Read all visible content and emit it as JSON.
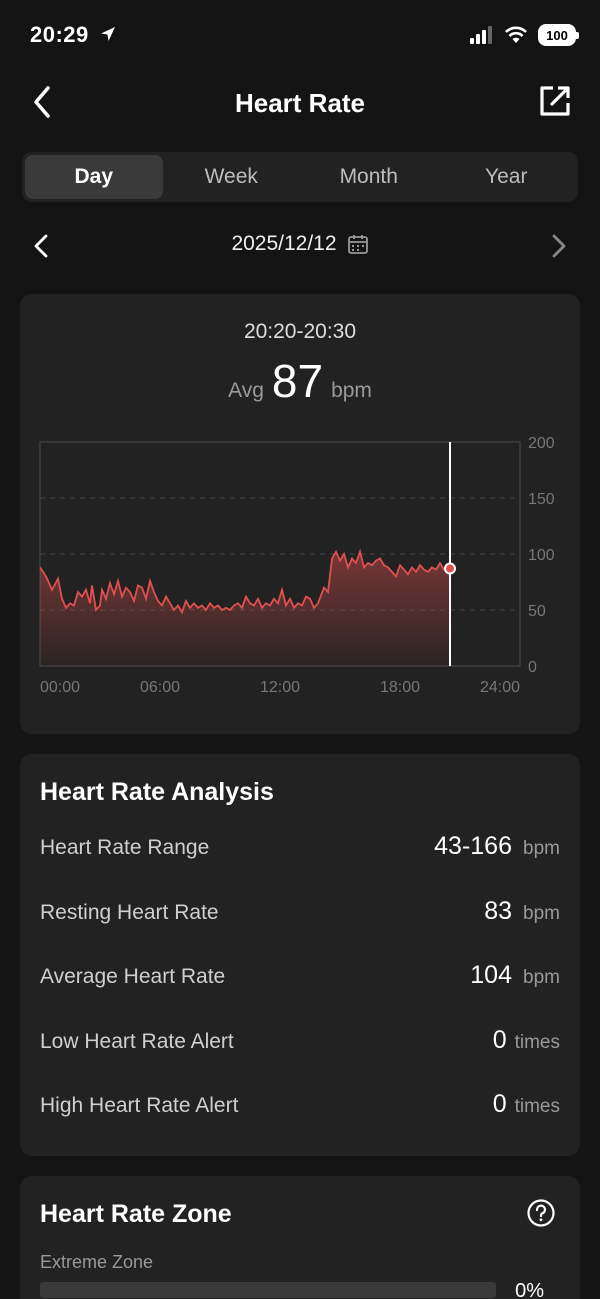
{
  "status": {
    "time": "20:29",
    "battery": "100"
  },
  "nav": {
    "title": "Heart Rate"
  },
  "tabs": [
    {
      "label": "Day",
      "active": true
    },
    {
      "label": "Week",
      "active": false
    },
    {
      "label": "Month",
      "active": false
    },
    {
      "label": "Year",
      "active": false
    }
  ],
  "date": {
    "label": "2025/12/12"
  },
  "chart": {
    "range_label": "20:20-20:30",
    "avg_label": "Avg",
    "avg_value": "87",
    "avg_unit": "bpm"
  },
  "chart_data": {
    "type": "area",
    "x_unit": "hours",
    "xlim": [
      0,
      24
    ],
    "ylim": [
      0,
      200
    ],
    "x_ticks": [
      "00:00",
      "06:00",
      "12:00",
      "18:00",
      "24:00"
    ],
    "y_ticks": [
      "0",
      "50",
      "100",
      "150",
      "200"
    ],
    "cursor_x": 20.5,
    "cursor_y": 87,
    "series": [
      {
        "points": [
          [
            0,
            88
          ],
          [
            0.3,
            80
          ],
          [
            0.6,
            68
          ],
          [
            0.9,
            78
          ],
          [
            1.1,
            60
          ],
          [
            1.3,
            52
          ],
          [
            1.5,
            56
          ],
          [
            1.7,
            54
          ],
          [
            1.9,
            66
          ],
          [
            2.1,
            62
          ],
          [
            2.3,
            68
          ],
          [
            2.5,
            56
          ],
          [
            2.6,
            72
          ],
          [
            2.8,
            50
          ],
          [
            3.0,
            54
          ],
          [
            3.1,
            68
          ],
          [
            3.3,
            60
          ],
          [
            3.5,
            74
          ],
          [
            3.7,
            64
          ],
          [
            3.9,
            76
          ],
          [
            4.1,
            62
          ],
          [
            4.3,
            70
          ],
          [
            4.5,
            66
          ],
          [
            4.7,
            58
          ],
          [
            4.9,
            72
          ],
          [
            5.1,
            70
          ],
          [
            5.3,
            60
          ],
          [
            5.5,
            76
          ],
          [
            5.7,
            66
          ],
          [
            5.9,
            58
          ],
          [
            6.1,
            54
          ],
          [
            6.3,
            62
          ],
          [
            6.5,
            56
          ],
          [
            6.7,
            50
          ],
          [
            6.9,
            54
          ],
          [
            7.1,
            48
          ],
          [
            7.3,
            58
          ],
          [
            7.5,
            52
          ],
          [
            7.7,
            56
          ],
          [
            7.9,
            52
          ],
          [
            8.1,
            54
          ],
          [
            8.3,
            50
          ],
          [
            8.5,
            56
          ],
          [
            8.7,
            52
          ],
          [
            8.9,
            54
          ],
          [
            9.1,
            50
          ],
          [
            9.3,
            52
          ],
          [
            9.5,
            50
          ],
          [
            9.7,
            54
          ],
          [
            9.9,
            56
          ],
          [
            10.1,
            52
          ],
          [
            10.3,
            62
          ],
          [
            10.5,
            56
          ],
          [
            10.7,
            54
          ],
          [
            10.9,
            60
          ],
          [
            11.1,
            52
          ],
          [
            11.3,
            56
          ],
          [
            11.5,
            54
          ],
          [
            11.7,
            60
          ],
          [
            11.9,
            56
          ],
          [
            12.1,
            68
          ],
          [
            12.3,
            54
          ],
          [
            12.5,
            60
          ],
          [
            12.7,
            52
          ],
          [
            12.9,
            56
          ],
          [
            13.1,
            54
          ],
          [
            13.3,
            62
          ],
          [
            13.5,
            60
          ],
          [
            13.7,
            52
          ],
          [
            13.9,
            56
          ],
          [
            14.2,
            70
          ],
          [
            14.4,
            66
          ],
          [
            14.6,
            96
          ],
          [
            14.8,
            102
          ],
          [
            15.0,
            94
          ],
          [
            15.2,
            100
          ],
          [
            15.4,
            88
          ],
          [
            15.6,
            96
          ],
          [
            15.8,
            92
          ],
          [
            16.0,
            102
          ],
          [
            16.2,
            88
          ],
          [
            16.4,
            92
          ],
          [
            16.6,
            90
          ],
          [
            16.8,
            94
          ],
          [
            17.0,
            96
          ],
          [
            17.2,
            90
          ],
          [
            17.4,
            88
          ],
          [
            17.6,
            84
          ],
          [
            17.8,
            80
          ],
          [
            18.0,
            90
          ],
          [
            18.2,
            86
          ],
          [
            18.4,
            82
          ],
          [
            18.6,
            88
          ],
          [
            18.8,
            84
          ],
          [
            19.0,
            90
          ],
          [
            19.2,
            86
          ],
          [
            19.4,
            84
          ],
          [
            19.6,
            88
          ],
          [
            19.8,
            86
          ],
          [
            20.0,
            92
          ],
          [
            20.2,
            86
          ],
          [
            20.5,
            87
          ]
        ]
      }
    ]
  },
  "analysis": {
    "title": "Heart Rate Analysis",
    "rows": [
      {
        "label": "Heart Rate Range",
        "value": "43-166",
        "unit": "bpm"
      },
      {
        "label": "Resting Heart Rate",
        "value": "83",
        "unit": "bpm"
      },
      {
        "label": "Average Heart Rate",
        "value": "104",
        "unit": "bpm"
      },
      {
        "label": "Low Heart Rate Alert",
        "value": "0",
        "unit": "times"
      },
      {
        "label": "High Heart Rate Alert",
        "value": "0",
        "unit": "times"
      }
    ]
  },
  "zone": {
    "title": "Heart Rate Zone",
    "first_label": "Extreme Zone",
    "first_pct": "0%",
    "first_fraction": 0
  },
  "colors": {
    "accent": "#e05050",
    "background": "#141414",
    "card": "#222222"
  }
}
